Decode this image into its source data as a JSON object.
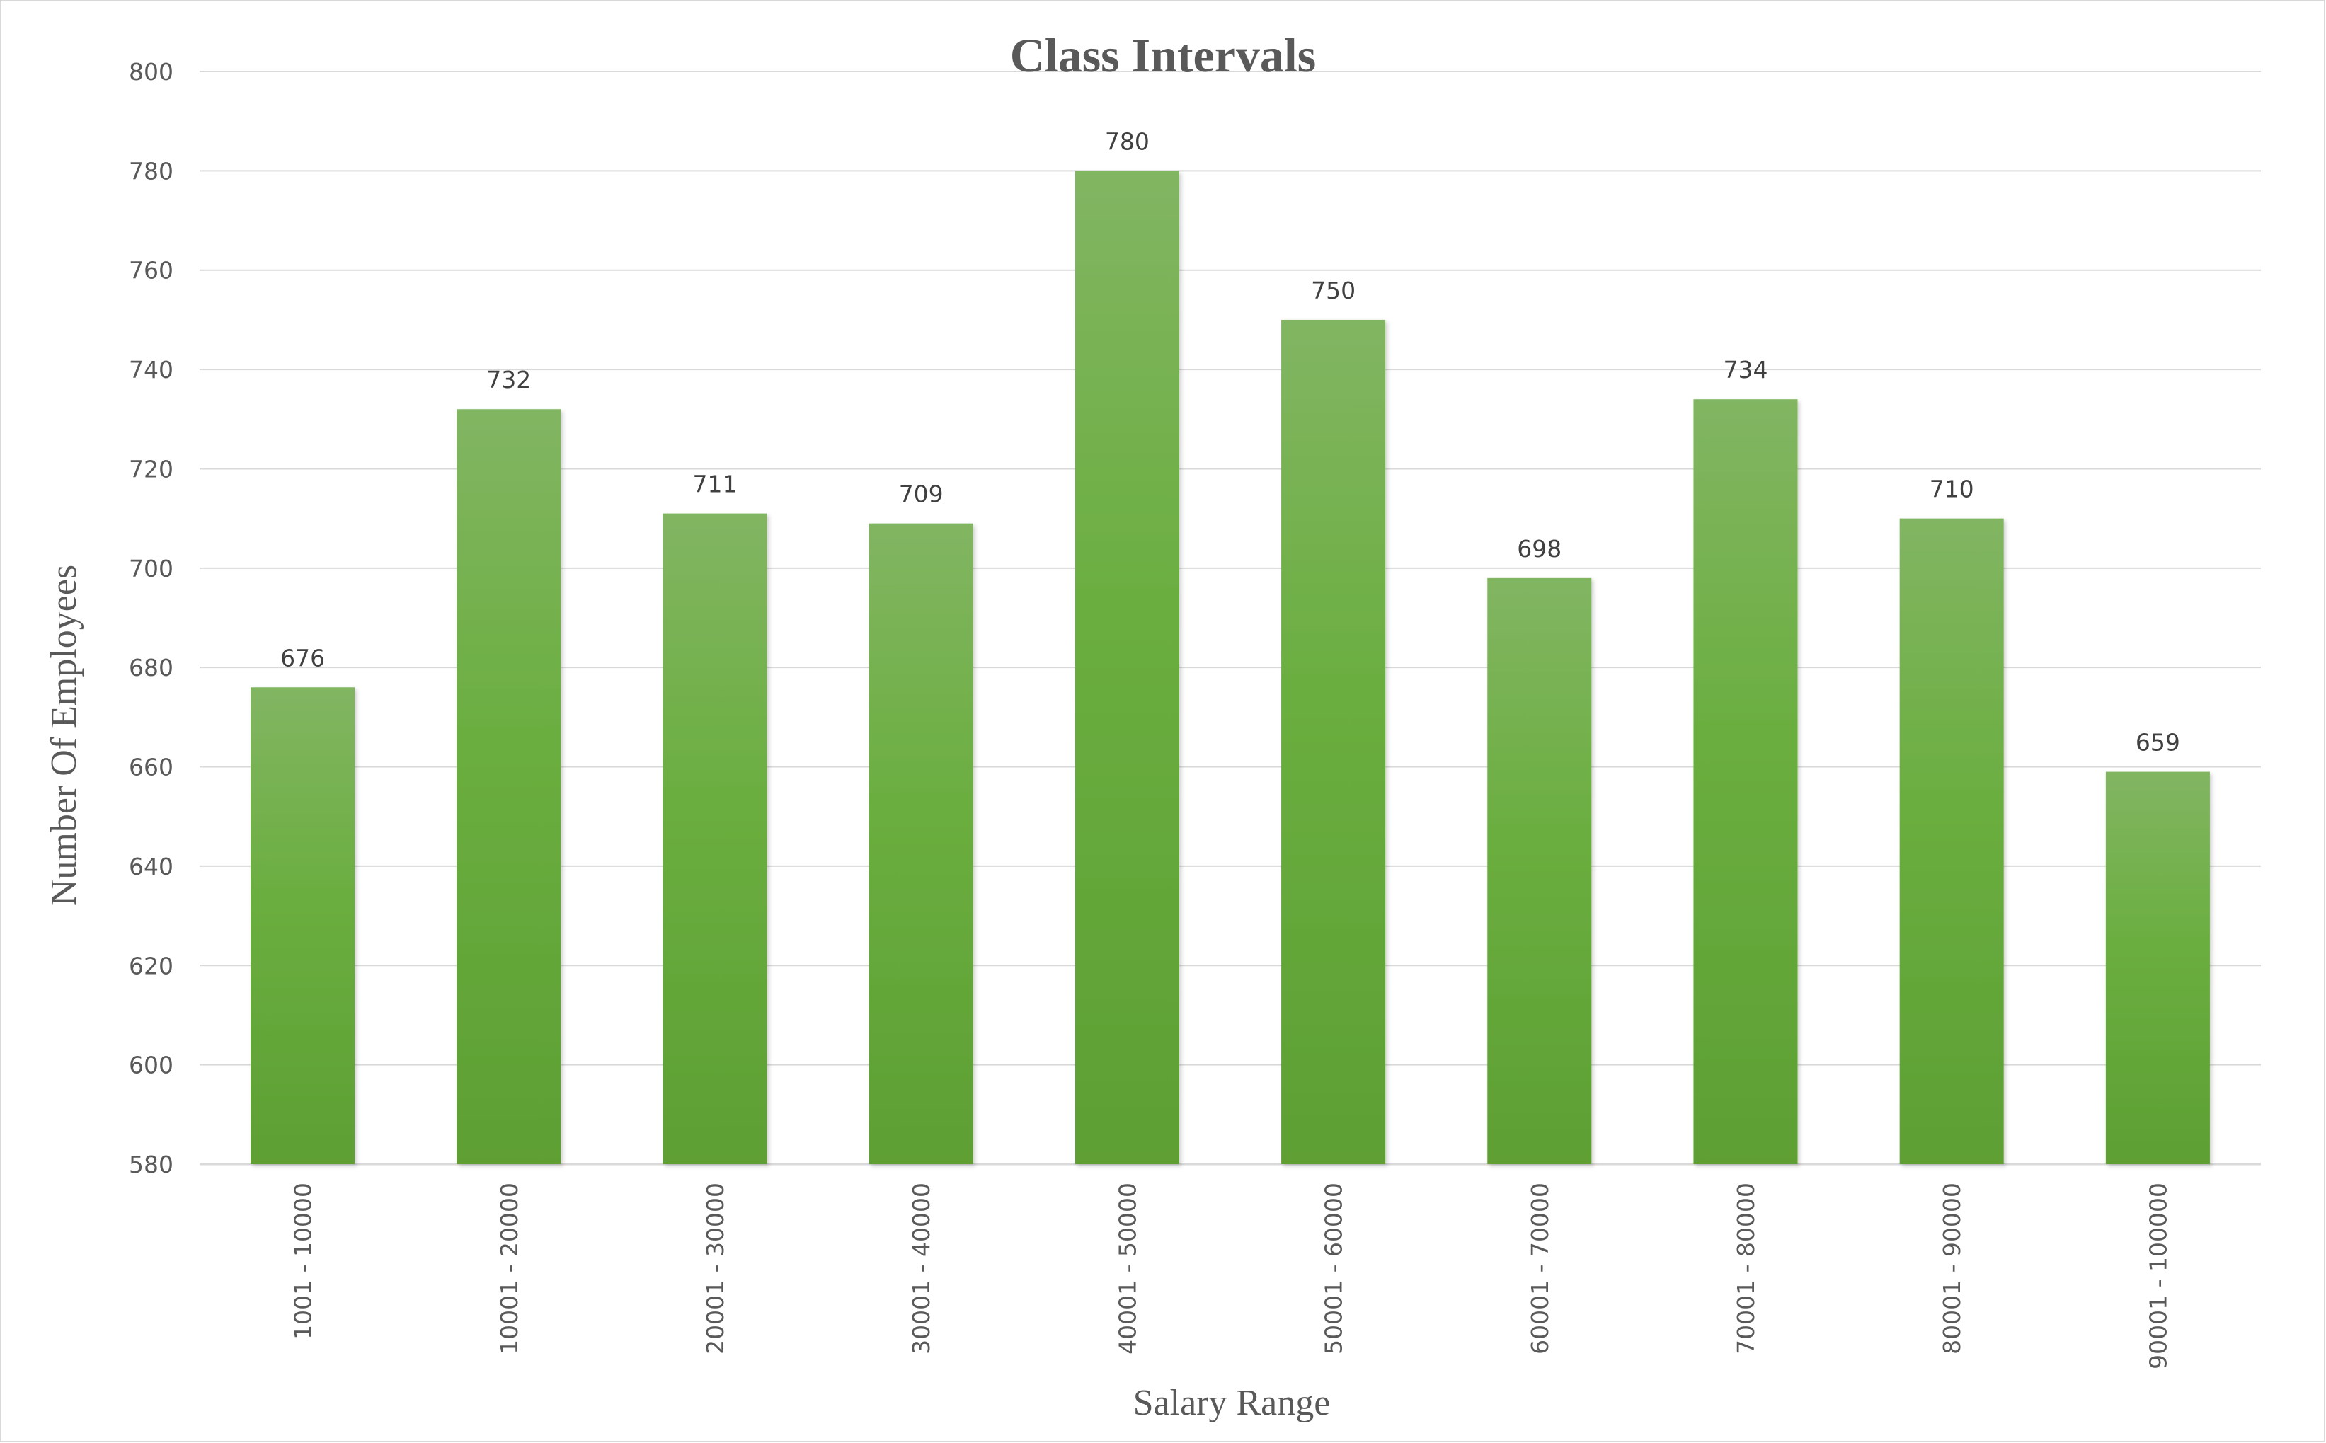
{
  "chart_data": {
    "type": "bar",
    "title": "Class Intervals",
    "xlabel": "Salary Range",
    "ylabel": "Number Of Employees",
    "categories": [
      "1001 - 10000",
      "10001 - 20000",
      "20001 - 30000",
      "30001 - 40000",
      "40001 - 50000",
      "50001 - 60000",
      "60001 - 70000",
      "70001 - 80000",
      "80001 - 90000",
      "90001 - 100000"
    ],
    "values": [
      676,
      732,
      711,
      709,
      780,
      750,
      698,
      734,
      710,
      659
    ],
    "ylim": [
      580,
      800
    ],
    "yticks": [
      580,
      600,
      620,
      640,
      660,
      680,
      700,
      720,
      740,
      760,
      780,
      800
    ],
    "grid": true,
    "legend": "none",
    "data_labels": true,
    "colors": {
      "bar_top": "#82b562",
      "bar_bottom": "#5e9f33",
      "grid": "#d9d9d9",
      "text": "#595959"
    }
  }
}
